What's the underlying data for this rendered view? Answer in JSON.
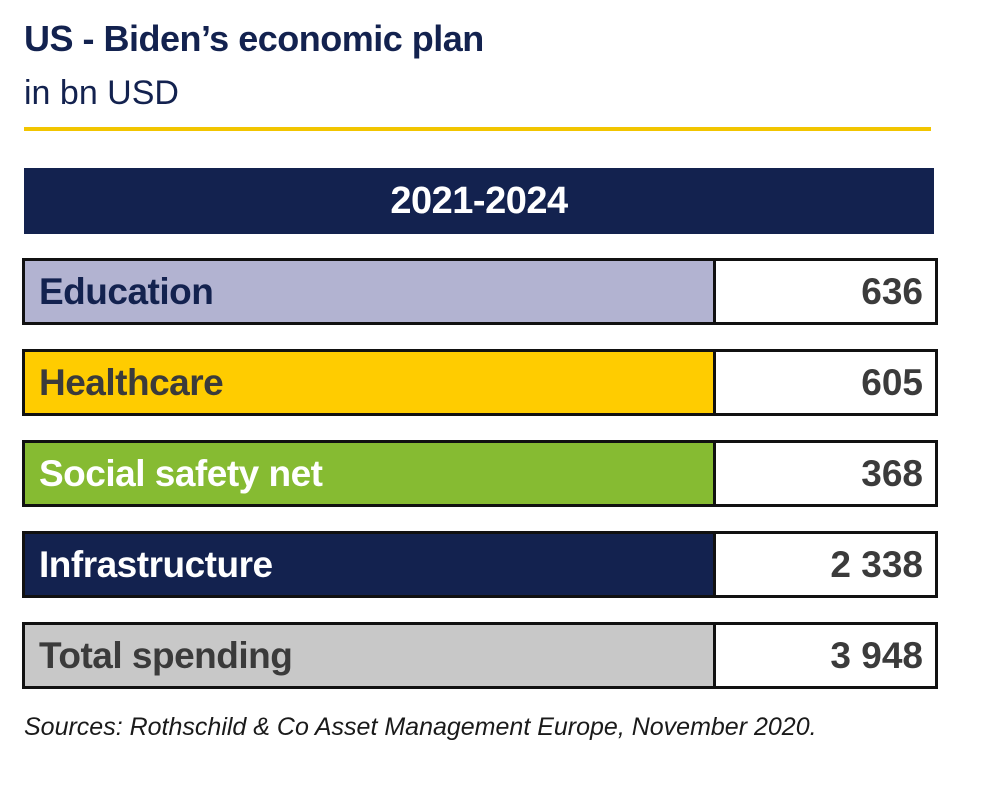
{
  "chart_data": {
    "type": "table",
    "title": "US - Biden’s economic plan",
    "subtitle": "in bn USD",
    "period": "2021-2024",
    "rows": [
      {
        "label": "Education",
        "value": "636",
        "fill": "#b2b3d1",
        "text_color": "#13224f"
      },
      {
        "label": "Healthcare",
        "value": "605",
        "fill": "#ffcc00",
        "text_color": "#3b3b3b"
      },
      {
        "label": "Social safety net",
        "value": "368",
        "fill": "#86bb32",
        "text_color": "#ffffff"
      },
      {
        "label": "Infrastructure",
        "value": "2 338",
        "fill": "#13224f",
        "text_color": "#ffffff"
      },
      {
        "label": "Total spending",
        "value": "3 948",
        "fill": "#c8c8c8",
        "text_color": "#3b3b3b"
      }
    ]
  },
  "source": "Sources: Rothschild & Co Asset Management Europe, November 2020."
}
